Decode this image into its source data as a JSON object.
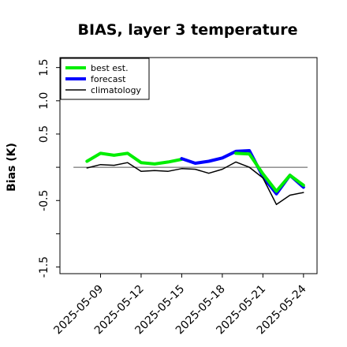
{
  "chart_data": {
    "type": "line",
    "title": "BIAS, layer 3 temperature",
    "xlabel": "",
    "ylabel": "Bias (K)",
    "ylim": [
      -1.6,
      1.65
    ],
    "yticks": [
      "-1.5",
      "-0.5",
      "0.5",
      "1.0",
      "1.5"
    ],
    "ytick_values": [
      -1.5,
      -0.5,
      0.5,
      1.0,
      1.5
    ],
    "xlim": [
      "2025-05-06",
      "2025-05-25"
    ],
    "xticks": [
      {
        "label": "2025-05-09",
        "date": "2025-05-09",
        "color": "#000000"
      },
      {
        "label": "2025-05-12",
        "date": "2025-05-12",
        "color": "#000000"
      },
      {
        "label": "2025-05-15",
        "date": "2025-05-15",
        "color": "#008000"
      },
      {
        "label": "2025-05-18",
        "date": "2025-05-18",
        "color": "#000000"
      },
      {
        "label": "2025-05-21",
        "date": "2025-05-21",
        "color": "#000000"
      },
      {
        "label": "2025-05-24",
        "date": "2025-05-24",
        "color": "#000000"
      }
    ],
    "reference_line": 0,
    "legend_position": "top-left",
    "series": [
      {
        "name": "best est.",
        "color": "#00ee00",
        "x": [
          "2025-05-08",
          "2025-05-09",
          "2025-05-10",
          "2025-05-11",
          "2025-05-12",
          "2025-05-13",
          "2025-05-14",
          "2025-05-15"
        ],
        "values": [
          0.09,
          0.21,
          0.18,
          0.21,
          0.07,
          0.05,
          0.08,
          0.12
        ]
      },
      {
        "name": "forecast",
        "color": "#0000ff",
        "x": [
          "2025-05-15",
          "2025-05-16",
          "2025-05-17",
          "2025-05-18",
          "2025-05-19",
          "2025-05-20",
          "2025-05-21",
          "2025-05-22",
          "2025-05-23",
          "2025-05-24"
        ],
        "values": [
          0.13,
          0.06,
          0.09,
          0.14,
          0.24,
          0.25,
          -0.14,
          -0.4,
          -0.12,
          -0.3
        ]
      },
      {
        "name": "best est. (forecast period)",
        "color": "#00ee00",
        "x": [
          "2025-05-19",
          "2025-05-20",
          "2025-05-21",
          "2025-05-22",
          "2025-05-23",
          "2025-05-24"
        ],
        "values": [
          0.21,
          0.2,
          -0.1,
          -0.36,
          -0.12,
          -0.27
        ]
      },
      {
        "name": "climatology",
        "color": "#000000",
        "x": [
          "2025-05-08",
          "2025-05-09",
          "2025-05-10",
          "2025-05-11",
          "2025-05-12",
          "2025-05-13",
          "2025-05-14",
          "2025-05-15",
          "2025-05-16",
          "2025-05-17",
          "2025-05-18",
          "2025-05-19",
          "2025-05-20",
          "2025-05-21",
          "2025-05-22",
          "2025-05-23",
          "2025-05-24"
        ],
        "values": [
          -0.01,
          0.04,
          0.03,
          0.07,
          -0.06,
          -0.05,
          -0.06,
          -0.02,
          -0.03,
          -0.09,
          -0.03,
          0.08,
          0.0,
          -0.16,
          -0.56,
          -0.42,
          -0.38
        ]
      }
    ],
    "legend": [
      {
        "label": "best est.",
        "color": "#00ee00",
        "width": 4
      },
      {
        "label": "forecast",
        "color": "#0000ff",
        "width": 4
      },
      {
        "label": "climatology",
        "color": "#000000",
        "width": 1.5
      }
    ]
  }
}
